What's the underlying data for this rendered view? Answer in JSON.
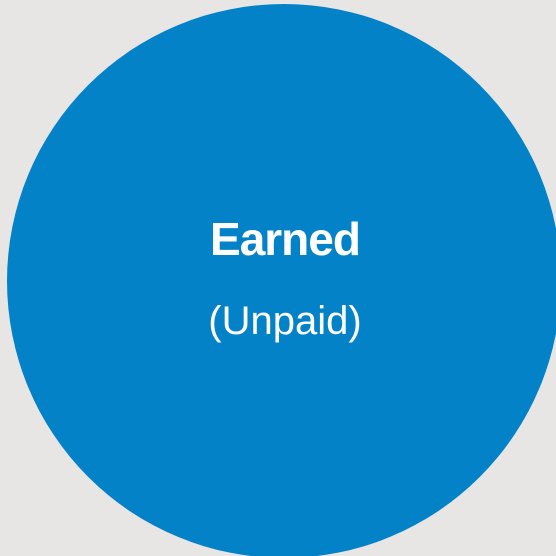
{
  "circle": {
    "title": "Earned",
    "subtitle": "(Unpaid)"
  }
}
